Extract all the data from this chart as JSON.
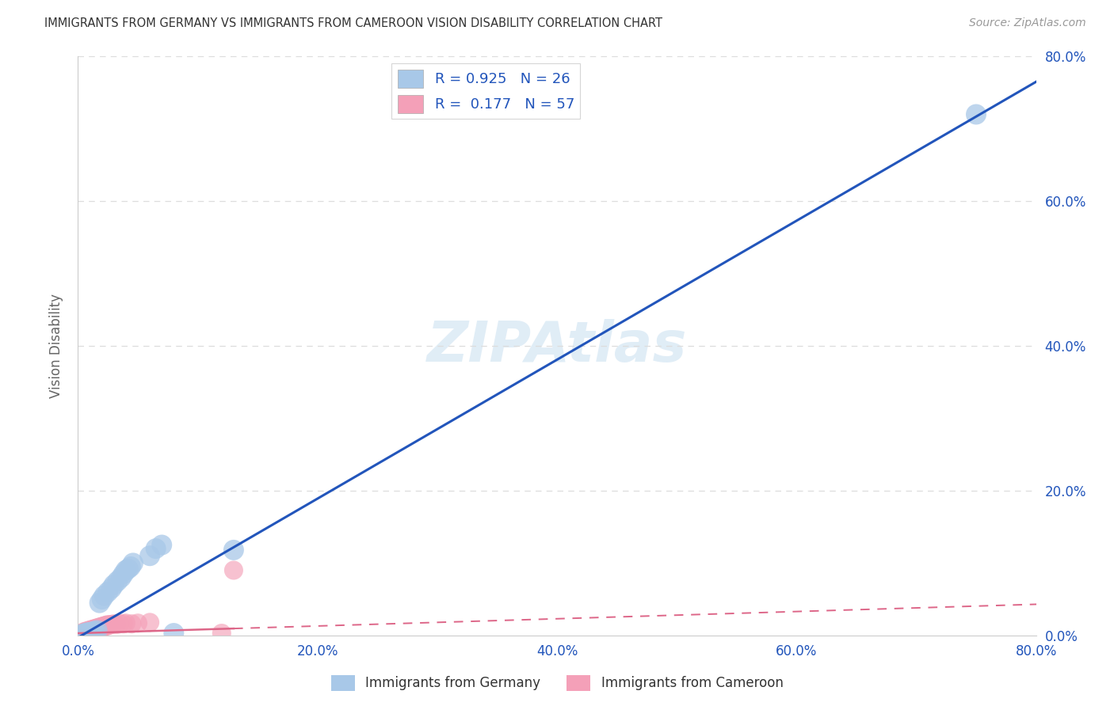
{
  "title": "IMMIGRANTS FROM GERMANY VS IMMIGRANTS FROM CAMEROON VISION DISABILITY CORRELATION CHART",
  "source": "Source: ZipAtlas.com",
  "ylabel": "Vision Disability",
  "xlim": [
    0.0,
    0.8
  ],
  "ylim": [
    0.0,
    0.8
  ],
  "xticks": [
    0.0,
    0.2,
    0.4,
    0.6,
    0.8
  ],
  "yticks": [
    0.0,
    0.2,
    0.4,
    0.6,
    0.8
  ],
  "xticklabels": [
    "0.0%",
    "20.0%",
    "40.0%",
    "60.0%",
    "80.0%"
  ],
  "yticklabels": [
    "0.0%",
    "20.0%",
    "40.0%",
    "60.0%",
    "80.0%"
  ],
  "germany_color": "#a8c8e8",
  "cameroon_color": "#f4a0b8",
  "germany_line_color": "#2255bb",
  "cameroon_line_color": "#dd6688",
  "germany_R": 0.925,
  "germany_N": 26,
  "cameroon_R": 0.177,
  "cameroon_N": 57,
  "watermark": "ZIPAtlas",
  "germany_x": [
    0.004,
    0.006,
    0.008,
    0.01,
    0.012,
    0.014,
    0.016,
    0.018,
    0.02,
    0.022,
    0.025,
    0.028,
    0.03,
    0.033,
    0.036,
    0.038,
    0.04,
    0.042,
    0.044,
    0.046,
    0.06,
    0.065,
    0.07,
    0.08,
    0.13,
    0.75
  ],
  "germany_y": [
    0.002,
    0.003,
    0.004,
    0.004,
    0.005,
    0.006,
    0.007,
    0.045,
    0.05,
    0.055,
    0.06,
    0.065,
    0.07,
    0.075,
    0.08,
    0.085,
    0.09,
    0.092,
    0.095,
    0.1,
    0.11,
    0.12,
    0.125,
    0.003,
    0.118,
    0.72
  ],
  "cameroon_x": [
    0.003,
    0.004,
    0.005,
    0.005,
    0.006,
    0.006,
    0.007,
    0.007,
    0.008,
    0.008,
    0.009,
    0.009,
    0.01,
    0.01,
    0.011,
    0.011,
    0.012,
    0.012,
    0.013,
    0.013,
    0.014,
    0.014,
    0.015,
    0.015,
    0.016,
    0.016,
    0.017,
    0.017,
    0.018,
    0.018,
    0.019,
    0.019,
    0.02,
    0.02,
    0.021,
    0.021,
    0.022,
    0.022,
    0.023,
    0.023,
    0.024,
    0.024,
    0.025,
    0.025,
    0.026,
    0.027,
    0.028,
    0.03,
    0.032,
    0.035,
    0.038,
    0.04,
    0.045,
    0.05,
    0.06,
    0.12,
    0.13
  ],
  "cameroon_y": [
    0.003,
    0.003,
    0.004,
    0.005,
    0.004,
    0.005,
    0.005,
    0.006,
    0.005,
    0.006,
    0.006,
    0.007,
    0.006,
    0.007,
    0.007,
    0.008,
    0.007,
    0.008,
    0.008,
    0.009,
    0.008,
    0.009,
    0.009,
    0.01,
    0.009,
    0.01,
    0.01,
    0.011,
    0.01,
    0.011,
    0.011,
    0.012,
    0.011,
    0.012,
    0.012,
    0.013,
    0.012,
    0.013,
    0.013,
    0.014,
    0.013,
    0.014,
    0.014,
    0.015,
    0.014,
    0.015,
    0.015,
    0.016,
    0.015,
    0.016,
    0.016,
    0.017,
    0.016,
    0.017,
    0.018,
    0.003,
    0.09
  ],
  "grid_color": "#dddddd",
  "grid_style": "--"
}
